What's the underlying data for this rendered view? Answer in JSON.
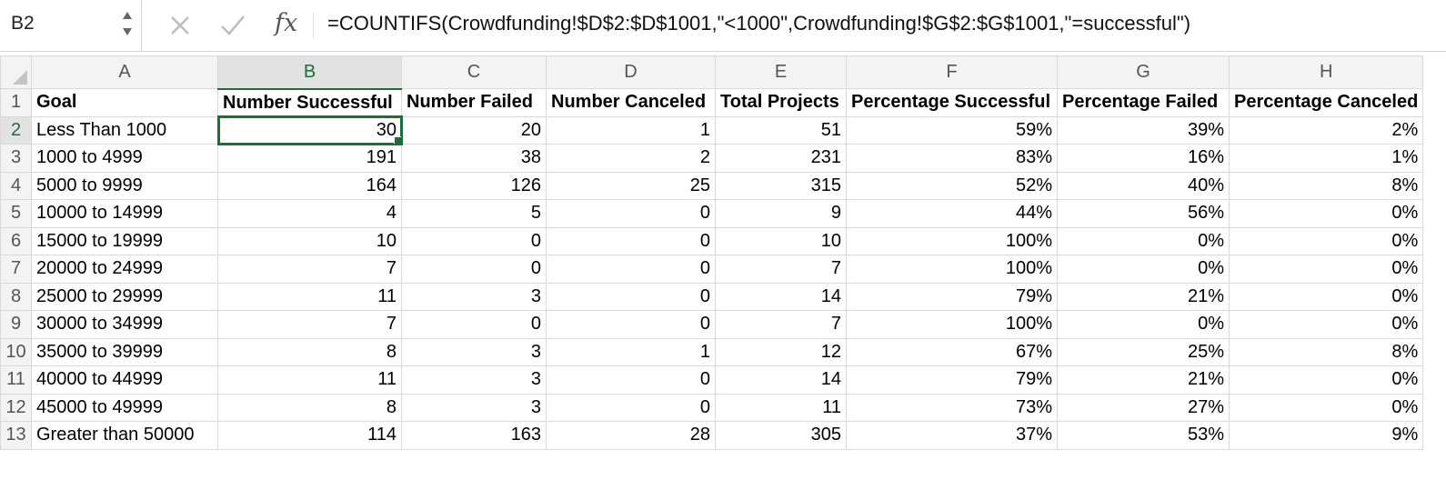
{
  "formula_bar": {
    "name_box": "B2",
    "cancel_icon": "x-icon",
    "enter_icon": "checkmark-icon",
    "fx_label": "fx",
    "formula": "=COUNTIFS(Crowdfunding!$D$2:$D$1001,\"<1000\",Crowdfunding!$G$2:$G$1001,\"=successful\")"
  },
  "columns": [
    "A",
    "B",
    "C",
    "D",
    "E",
    "F",
    "G",
    "H"
  ],
  "selected_column": "B",
  "selected_row": "2",
  "rows": [
    {
      "n": "1",
      "cells": [
        "Goal",
        "Number Successful",
        "Number Failed",
        "Number Canceled",
        "Total Projects",
        "Percentage Successful",
        "Percentage Failed",
        "Percentage Canceled"
      ]
    },
    {
      "n": "2",
      "cells": [
        "Less Than 1000",
        "30",
        "20",
        "1",
        "51",
        "59%",
        "39%",
        "2%"
      ]
    },
    {
      "n": "3",
      "cells": [
        "1000 to 4999",
        "191",
        "38",
        "2",
        "231",
        "83%",
        "16%",
        "1%"
      ]
    },
    {
      "n": "4",
      "cells": [
        "5000 to 9999",
        "164",
        "126",
        "25",
        "315",
        "52%",
        "40%",
        "8%"
      ]
    },
    {
      "n": "5",
      "cells": [
        "10000 to 14999",
        "4",
        "5",
        "0",
        "9",
        "44%",
        "56%",
        "0%"
      ]
    },
    {
      "n": "6",
      "cells": [
        "15000 to 19999",
        "10",
        "0",
        "0",
        "10",
        "100%",
        "0%",
        "0%"
      ]
    },
    {
      "n": "7",
      "cells": [
        "20000 to 24999",
        "7",
        "0",
        "0",
        "7",
        "100%",
        "0%",
        "0%"
      ]
    },
    {
      "n": "8",
      "cells": [
        "25000 to 29999",
        "11",
        "3",
        "0",
        "14",
        "79%",
        "21%",
        "0%"
      ]
    },
    {
      "n": "9",
      "cells": [
        "30000 to 34999",
        "7",
        "0",
        "0",
        "7",
        "100%",
        "0%",
        "0%"
      ]
    },
    {
      "n": "10",
      "cells": [
        "35000 to 39999",
        "8",
        "3",
        "1",
        "12",
        "67%",
        "25%",
        "8%"
      ]
    },
    {
      "n": "11",
      "cells": [
        "40000 to 44999",
        "11",
        "3",
        "0",
        "14",
        "79%",
        "21%",
        "0%"
      ]
    },
    {
      "n": "12",
      "cells": [
        "45000 to 49999",
        "8",
        "3",
        "0",
        "11",
        "73%",
        "27%",
        "0%"
      ]
    },
    {
      "n": "13",
      "cells": [
        "Greater than 50000",
        "114",
        "163",
        "28",
        "305",
        "37%",
        "53%",
        "9%"
      ]
    }
  ],
  "colors": {
    "selection": "#1f6b3a",
    "header_bg": "#f3f3f3",
    "gridline": "#d9d9d9"
  }
}
